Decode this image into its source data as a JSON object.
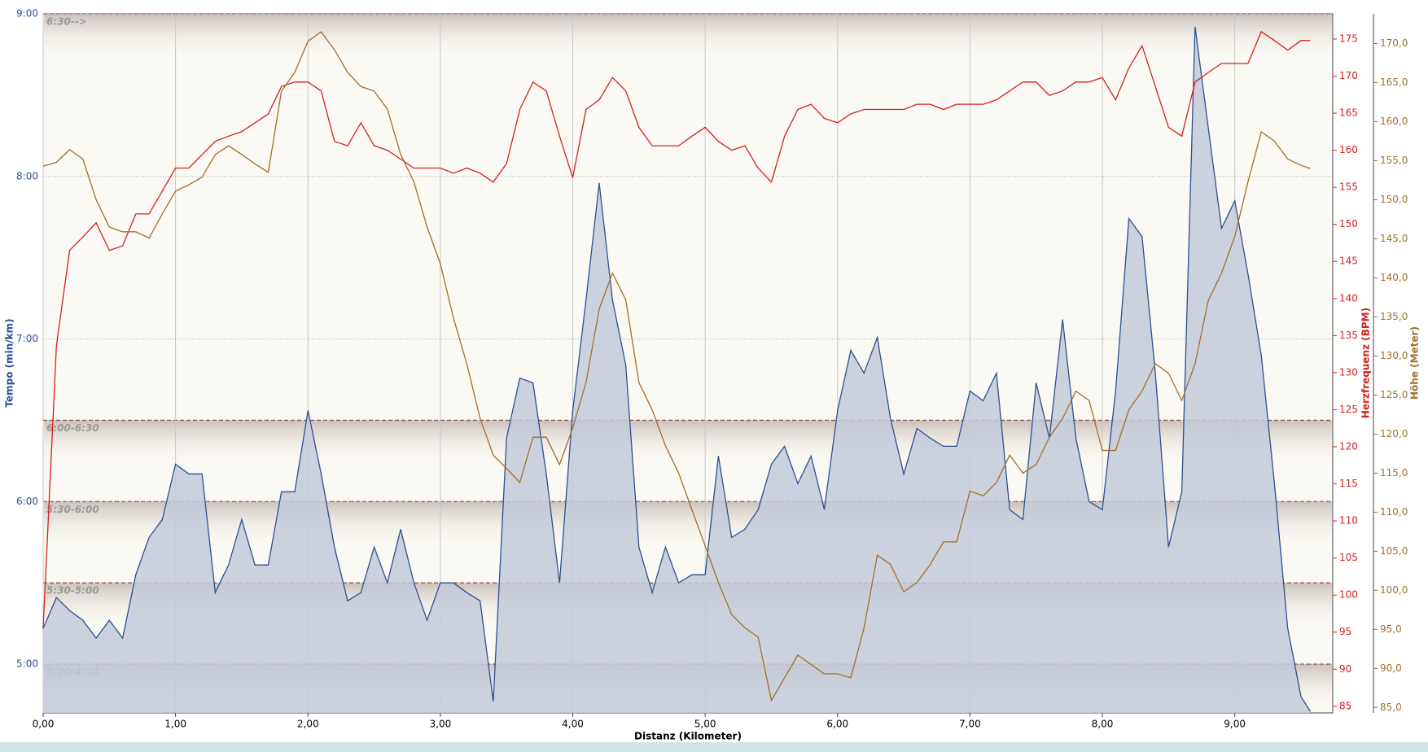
{
  "chart_data": {
    "type": "area-line",
    "xlabel": "Distanz (Kilometer)",
    "ylabel": "Tempo (min/km)",
    "y2label": "Herzfrequenz (BPM)",
    "y3label": "Höhe (Meter)",
    "x": [
      0,
      0.1,
      0.2,
      0.3,
      0.4,
      0.5,
      0.6,
      0.7,
      0.8,
      0.9,
      1,
      1.1,
      1.2,
      1.3,
      1.4,
      1.5,
      1.6,
      1.7,
      1.8,
      1.9,
      2,
      2.1,
      2.2,
      2.3,
      2.4,
      2.5,
      2.6,
      2.7,
      2.8,
      2.9,
      3,
      3.1,
      3.2,
      3.3,
      3.4,
      3.5,
      3.6,
      3.7,
      3.8,
      3.9,
      4,
      4.1,
      4.2,
      4.3,
      4.4,
      4.5,
      4.6,
      4.7,
      4.8,
      4.9,
      5,
      5.1,
      5.2,
      5.3,
      5.4,
      5.5,
      5.6,
      5.7,
      5.8,
      5.9,
      6,
      6.1,
      6.2,
      6.3,
      6.4,
      6.5,
      6.6,
      6.7,
      6.8,
      6.9,
      7,
      7.1,
      7.2,
      7.3,
      7.4,
      7.5,
      7.6,
      7.7,
      7.8,
      7.9,
      8,
      8.1,
      8.2,
      8.3,
      8.4,
      8.5,
      8.6,
      8.7,
      8.8,
      8.9,
      9,
      9.1,
      9.2,
      9.3,
      9.4,
      9.5,
      9.57
    ],
    "series": [
      {
        "name": "Tempo",
        "axis": "y",
        "color": "#2f4f8f",
        "fill": "#c3cad9",
        "values": [
          5.22,
          5.41,
          5.33,
          5.27,
          5.16,
          5.27,
          5.16,
          5.55,
          5.78,
          5.89,
          6.23,
          6.17,
          6.17,
          5.44,
          5.61,
          5.89,
          5.61,
          5.61,
          6.06,
          6.06,
          6.56,
          6.17,
          5.72,
          5.39,
          5.44,
          5.72,
          5.5,
          5.83,
          5.5,
          5.27,
          5.5,
          5.5,
          5.44,
          5.39,
          4.77,
          6.39,
          6.76,
          6.73,
          6.17,
          5.5,
          6.56,
          7.24,
          7.96,
          7.24,
          6.84,
          5.72,
          5.44,
          5.72,
          5.5,
          5.55,
          5.55,
          6.28,
          5.78,
          5.83,
          5.95,
          6.23,
          6.34,
          6.11,
          6.28,
          5.95,
          6.56,
          6.93,
          6.79,
          7.01,
          6.51,
          6.17,
          6.45,
          6.39,
          6.34,
          6.34,
          6.68,
          6.62,
          6.79,
          5.95,
          5.89,
          6.73,
          6.39,
          7.12,
          6.39,
          6.0,
          5.95,
          6.68,
          7.74,
          7.63,
          6.79,
          5.72,
          6.06,
          8.92,
          8.3,
          7.68,
          7.85,
          7.4,
          6.9,
          6.11,
          5.22,
          4.8,
          4.71
        ]
      },
      {
        "name": "Herzfrequenz",
        "axis": "y2",
        "color": "#d42020",
        "values": [
          95.5,
          133.6,
          146.5,
          148.3,
          150.2,
          146.5,
          147.1,
          151.4,
          151.4,
          154.5,
          157.6,
          157.6,
          159.4,
          161.2,
          161.9,
          162.5,
          163.7,
          164.9,
          168.6,
          169.2,
          169.2,
          168.0,
          161.2,
          160.6,
          163.7,
          160.6,
          160.0,
          158.8,
          157.6,
          157.6,
          157.6,
          156.9,
          157.6,
          156.9,
          155.7,
          158.2,
          165.5,
          169.2,
          168.0,
          161.9,
          156.3,
          165.5,
          166.8,
          169.8,
          168.0,
          163.1,
          160.6,
          160.6,
          160.6,
          161.9,
          163.1,
          161.2,
          160.0,
          160.6,
          157.6,
          155.7,
          161.9,
          165.5,
          166.2,
          164.3,
          163.7,
          164.9,
          165.5,
          165.5,
          165.5,
          165.5,
          166.2,
          166.2,
          165.5,
          166.2,
          166.2,
          166.2,
          166.8,
          168.0,
          169.2,
          169.2,
          167.4,
          168.0,
          169.2,
          169.2,
          169.8,
          166.8,
          171.1,
          174.1,
          168.6,
          163.1,
          161.9,
          169.2,
          170.5,
          171.7,
          171.7,
          171.7,
          176.0,
          174.8,
          173.5,
          174.8,
          174.8
        ]
      },
      {
        "name": "Höhe",
        "axis": "y3",
        "color": "#a0702a",
        "values": [
          154.3,
          154.8,
          156.4,
          155.2,
          150.0,
          146.5,
          145.9,
          145.9,
          145.1,
          148.2,
          151.1,
          151.9,
          152.9,
          155.8,
          156.9,
          155.8,
          154.6,
          153.5,
          163.9,
          166.3,
          170.3,
          171.5,
          169.2,
          166.3,
          164.5,
          163.9,
          161.6,
          155.8,
          152.3,
          146.5,
          141.8,
          134.8,
          129.0,
          122.0,
          117.3,
          115.6,
          113.8,
          119.6,
          119.6,
          116.1,
          120.8,
          126.6,
          136.0,
          140.6,
          137.2,
          126.6,
          123.1,
          118.5,
          115.0,
          110.3,
          105.7,
          101.0,
          96.9,
          95.2,
          94.0,
          85.9,
          88.8,
          91.7,
          90.5,
          89.3,
          89.3,
          88.8,
          95.2,
          104.5,
          103.3,
          99.8,
          101.0,
          103.3,
          106.2,
          106.2,
          112.7,
          112.1,
          113.8,
          117.3,
          115.0,
          116.1,
          119.6,
          122.0,
          125.5,
          124.3,
          117.9,
          117.9,
          123.1,
          125.5,
          129.0,
          127.8,
          124.3,
          129.0,
          137.1,
          140.6,
          145.3,
          152.3,
          158.7,
          157.5,
          155.2,
          154.4,
          154.0
        ]
      }
    ],
    "xlim": [
      0,
      9.74
    ],
    "xticks": [
      {
        "value": 0,
        "label": "0,00"
      },
      {
        "value": 1,
        "label": "1,00"
      },
      {
        "value": 2,
        "label": "2,00"
      },
      {
        "value": 3,
        "label": "3,00"
      },
      {
        "value": 4,
        "label": "4,00"
      },
      {
        "value": 5,
        "label": "5,00"
      },
      {
        "value": 6,
        "label": "6,00"
      },
      {
        "value": 7,
        "label": "7,00"
      },
      {
        "value": 8,
        "label": "8,00"
      },
      {
        "value": 9,
        "label": "9,00"
      }
    ],
    "ylim": [
      4.7,
      9
    ],
    "yticks": [
      {
        "value": 5,
        "label": "5:00"
      },
      {
        "value": 6,
        "label": "6:00"
      },
      {
        "value": 7,
        "label": "7:00"
      },
      {
        "value": 8,
        "label": "8:00"
      },
      {
        "value": 9,
        "label": "9:00"
      }
    ],
    "y2lim": [
      84.1,
      178.4
    ],
    "y2ticks": [
      85,
      90,
      95,
      100,
      105,
      110,
      115,
      120,
      125,
      130,
      135,
      140,
      145,
      150,
      155,
      160,
      165,
      170,
      175
    ],
    "y3lim": [
      84.3,
      173.8
    ],
    "y3ticks": [
      {
        "value": 85,
        "label": "85,0"
      },
      {
        "value": 90,
        "label": "90,0"
      },
      {
        "value": 95,
        "label": "95,0"
      },
      {
        "value": 100,
        "label": "100,0"
      },
      {
        "value": 105,
        "label": "105,0"
      },
      {
        "value": 110,
        "label": "110,0"
      },
      {
        "value": 115,
        "label": "115,0"
      },
      {
        "value": 120,
        "label": "120,0"
      },
      {
        "value": 125,
        "label": "125,0"
      },
      {
        "value": 130,
        "label": "130,0"
      },
      {
        "value": 135,
        "label": "135,0"
      },
      {
        "value": 140,
        "label": "140,0"
      },
      {
        "value": 145,
        "label": "145,0"
      },
      {
        "value": 150,
        "label": "150,0"
      },
      {
        "value": 155,
        "label": "155,0"
      },
      {
        "value": 160,
        "label": "160,0"
      },
      {
        "value": 165,
        "label": "165,0"
      },
      {
        "value": 170,
        "label": "170,0"
      }
    ],
    "zones": [
      {
        "value": 9,
        "label": "6:30-->"
      },
      {
        "value": 6.5,
        "label": "6:00-6:30"
      },
      {
        "value": 6,
        "label": "5:30-6:00"
      },
      {
        "value": 5.5,
        "label": "5:30-5:00"
      },
      {
        "value": 5,
        "label": "5:00-4:30"
      }
    ],
    "grid": true
  }
}
